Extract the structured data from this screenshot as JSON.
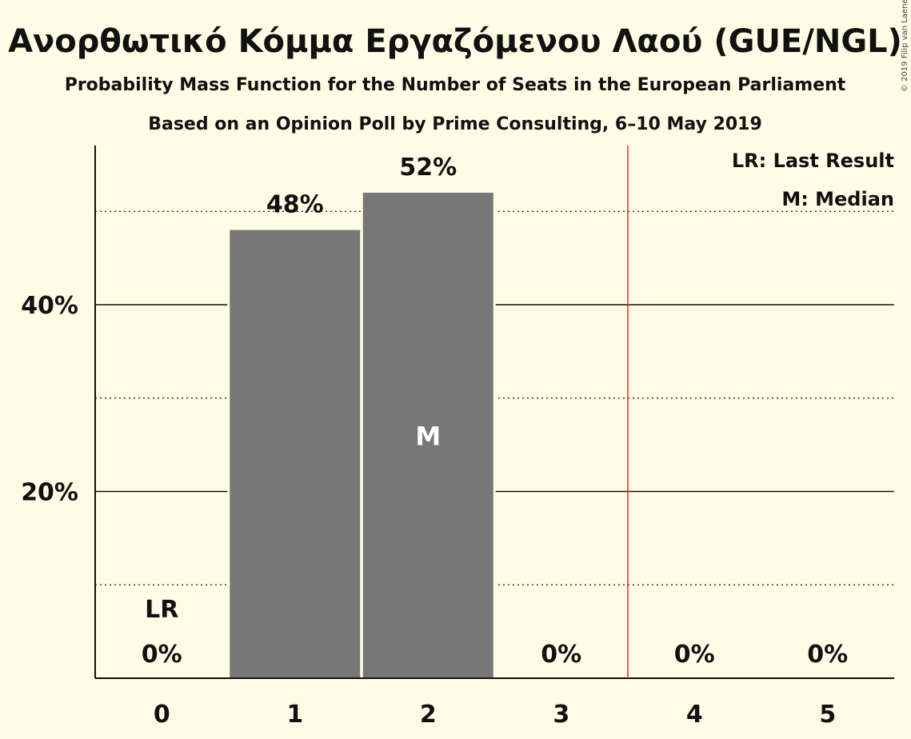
{
  "title": "Ανορθωτικό Κόμμα Εργαζόμενου Λαού (GUE/NGL)",
  "subtitle1": "Probability Mass Function for the Number of Seats in the European Parliament",
  "subtitle2": "Based on an Opinion Poll by Prime Consulting, 6–10 May 2019",
  "copyright": "© 2019 Filip van Laenen",
  "legend": {
    "last_result": "LR: Last Result",
    "median": "M: Median"
  },
  "colors": {
    "background": "#fffde6",
    "bar": "#777777",
    "last_result_line": "#e8272b",
    "axis": "#111111"
  },
  "chart_data": {
    "type": "bar",
    "categories": [
      "0",
      "1",
      "2",
      "3",
      "4",
      "5"
    ],
    "values": [
      0,
      48,
      52,
      0,
      0,
      0
    ],
    "value_labels": [
      "0%",
      "48%",
      "52%",
      "0%",
      "0%",
      "0%"
    ],
    "ylim": [
      0,
      57
    ],
    "yticks_major": [
      20,
      40
    ],
    "ytick_labels": [
      "20%",
      "40%"
    ],
    "yticks_minor": [
      10,
      30,
      50
    ],
    "last_result_seats": 0,
    "last_result_label": "LR",
    "median_seats": 2,
    "median_label": "M",
    "majority_line_after_seat": 3.5,
    "grid": true,
    "legend_position": "top-right"
  }
}
